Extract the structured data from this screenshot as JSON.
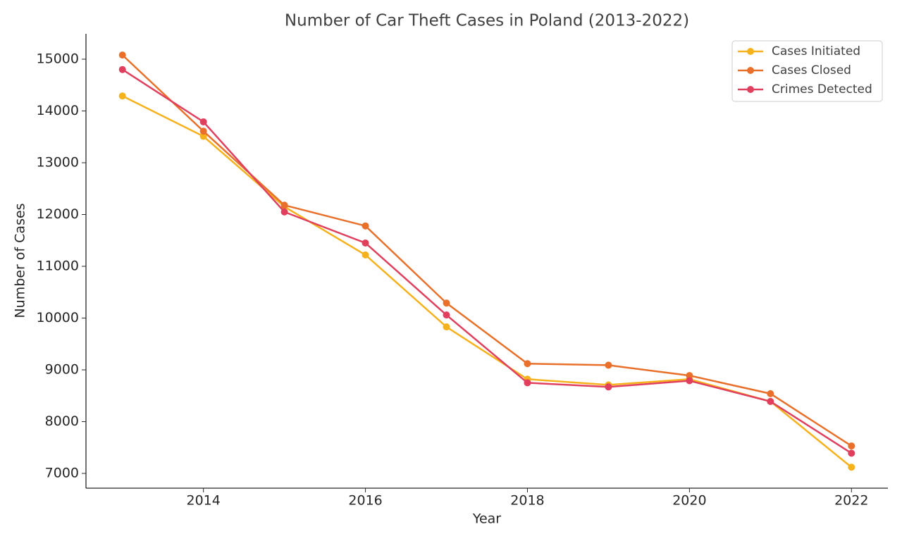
{
  "chart_data": {
    "type": "line",
    "title": "Number of Car Theft Cases in Poland (2013-2022)",
    "x_label": "Year",
    "y_label": "Number of Cases",
    "x": [
      2013,
      2014,
      2015,
      2016,
      2017,
      2018,
      2019,
      2020,
      2021,
      2022
    ],
    "series": [
      {
        "name": "Cases Initiated",
        "color": "#f5b21c",
        "values": [
          14290,
          13510,
          12150,
          11220,
          9830,
          8820,
          8710,
          8820,
          8390,
          7120
        ]
      },
      {
        "name": "Cases Closed",
        "color": "#e8702a",
        "values": [
          15080,
          13610,
          12180,
          11780,
          10290,
          9120,
          9090,
          8890,
          8540,
          7530
        ]
      },
      {
        "name": "Crimes Detected",
        "color": "#e0405e",
        "values": [
          14800,
          13790,
          12050,
          11450,
          10060,
          8750,
          8670,
          8790,
          8390,
          7390
        ]
      }
    ],
    "xlim": [
      2012.55,
      2022.45
    ],
    "xticks": [
      2014,
      2016,
      2018,
      2020,
      2022
    ],
    "ylim": [
      6715,
      15490
    ],
    "yticks": [
      7000,
      8000,
      9000,
      10000,
      11000,
      12000,
      13000,
      14000,
      15000
    ],
    "grid": false,
    "legend": "upper right"
  }
}
